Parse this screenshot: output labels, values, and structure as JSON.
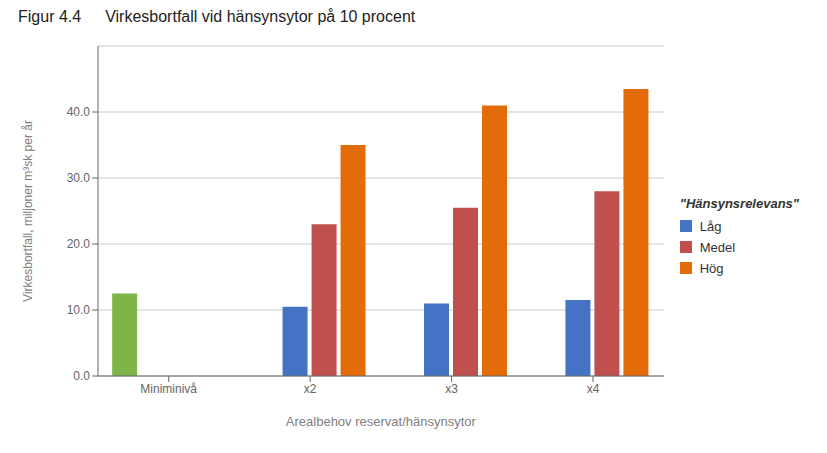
{
  "chart_data": {
    "type": "bar",
    "title": "Figur 4.4",
    "subtitle": "Virkesbortfall vid hänsynsytor på 10 procent",
    "ylabel": "Virkesbortfall, miljoner m³sk per år",
    "xlabel": "Arealbehov reservat/hänsynsytor",
    "annotations": [
      "\"Hänsynsrelevans\""
    ],
    "categories": [
      "Miniminivå",
      "x2",
      "x3",
      "x4"
    ],
    "series": [
      {
        "color": "#7db548",
        "values": [
          12.5,
          null,
          null,
          null
        ]
      },
      {
        "name": "Låg",
        "color": "#4472c4",
        "values": [
          null,
          10.5,
          11.0,
          11.5
        ]
      },
      {
        "name": "Medel",
        "color": "#c0504d",
        "values": [
          null,
          23.0,
          25.5,
          28.0
        ]
      },
      {
        "name": "Hög",
        "color": "#e36c09",
        "values": [
          null,
          35.0,
          41.0,
          43.5
        ]
      }
    ],
    "ylim": [
      0,
      50
    ],
    "yticks": [
      {
        "value": 0,
        "label": "0.0"
      },
      {
        "value": 10,
        "label": "10.0"
      },
      {
        "value": 20,
        "label": "20.0"
      },
      {
        "value": 30,
        "label": "30.0"
      },
      {
        "value": 40,
        "label": "40.0"
      }
    ],
    "grid": true,
    "legend": "right"
  }
}
